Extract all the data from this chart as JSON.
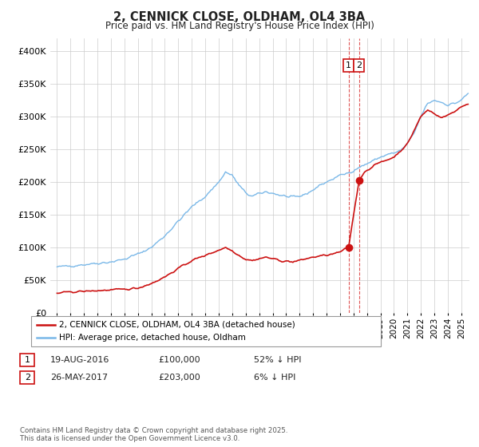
{
  "title_line1": "2, CENNICK CLOSE, OLDHAM, OL4 3BA",
  "title_line2": "Price paid vs. HM Land Registry's House Price Index (HPI)",
  "ylabel_ticks": [
    "£0",
    "£50K",
    "£100K",
    "£150K",
    "£200K",
    "£250K",
    "£300K",
    "£350K",
    "£400K"
  ],
  "ytick_values": [
    0,
    50000,
    100000,
    150000,
    200000,
    250000,
    300000,
    350000,
    400000
  ],
  "ylim": [
    0,
    420000
  ],
  "xlim_start": 1994.5,
  "xlim_end": 2025.6,
  "xtick_years": [
    1995,
    1996,
    1997,
    1998,
    1999,
    2000,
    2001,
    2002,
    2003,
    2004,
    2005,
    2006,
    2007,
    2008,
    2009,
    2010,
    2011,
    2012,
    2013,
    2014,
    2015,
    2016,
    2017,
    2018,
    2019,
    2020,
    2021,
    2022,
    2023,
    2024,
    2025
  ],
  "hpi_color": "#7ab8e8",
  "price_color": "#cc1111",
  "dashed_line_color": "#dd4444",
  "transaction1_date": 2016.63,
  "transaction1_price": 100000,
  "transaction2_date": 2017.41,
  "transaction2_price": 203000,
  "legend_label_price": "2, CENNICK CLOSE, OLDHAM, OL4 3BA (detached house)",
  "legend_label_hpi": "HPI: Average price, detached house, Oldham",
  "background_color": "#ffffff",
  "grid_color": "#cccccc",
  "hpi_anchors_x": [
    1995.0,
    1996.0,
    1997.0,
    1998.0,
    1999.0,
    2000.0,
    2001.0,
    2002.0,
    2003.0,
    2004.0,
    2005.0,
    2006.0,
    2007.0,
    2007.5,
    2008.0,
    2008.5,
    2009.0,
    2009.5,
    2010.0,
    2010.5,
    2011.0,
    2011.5,
    2012.0,
    2012.5,
    2013.0,
    2013.5,
    2014.0,
    2014.5,
    2015.0,
    2015.5,
    2016.0,
    2016.5,
    2017.0,
    2017.5,
    2018.0,
    2018.5,
    2019.0,
    2019.5,
    2020.0,
    2020.5,
    2021.0,
    2021.5,
    2022.0,
    2022.5,
    2023.0,
    2023.5,
    2024.0,
    2024.5,
    2025.0,
    2025.5
  ],
  "hpi_anchors_y": [
    70000,
    72000,
    74000,
    76000,
    78000,
    82000,
    90000,
    100000,
    118000,
    140000,
    162000,
    178000,
    200000,
    215000,
    210000,
    195000,
    183000,
    178000,
    182000,
    185000,
    183000,
    180000,
    178000,
    176000,
    178000,
    182000,
    188000,
    195000,
    200000,
    205000,
    210000,
    213000,
    218000,
    223000,
    228000,
    233000,
    238000,
    242000,
    244000,
    248000,
    258000,
    275000,
    300000,
    320000,
    325000,
    322000,
    318000,
    320000,
    325000,
    335000
  ],
  "price_anchors_x": [
    1995.0,
    1996.0,
    1997.0,
    1998.0,
    1999.0,
    2000.0,
    2001.0,
    2002.0,
    2003.0,
    2004.0,
    2005.0,
    2006.0,
    2007.0,
    2007.5,
    2008.0,
    2008.5,
    2009.0,
    2009.5,
    2010.0,
    2010.5,
    2011.0,
    2011.5,
    2012.0,
    2012.5,
    2013.0,
    2013.5,
    2014.0,
    2014.5,
    2015.0,
    2015.5,
    2016.0,
    2016.63,
    2017.41,
    2017.8,
    2018.5,
    2019.0,
    2020.0,
    2021.0,
    2022.0,
    2022.5,
    2023.0,
    2023.5,
    2024.0,
    2024.5,
    2025.0,
    2025.5
  ],
  "price_anchors_y": [
    30000,
    32000,
    33000,
    34000,
    35000,
    36000,
    38000,
    45000,
    55000,
    68000,
    80000,
    88000,
    96000,
    100000,
    95000,
    88000,
    82000,
    80000,
    83000,
    85000,
    83000,
    80000,
    79000,
    78000,
    80000,
    83000,
    85000,
    87000,
    88000,
    90000,
    93000,
    100000,
    203000,
    215000,
    225000,
    230000,
    238000,
    258000,
    300000,
    310000,
    305000,
    298000,
    302000,
    308000,
    315000,
    320000
  ]
}
